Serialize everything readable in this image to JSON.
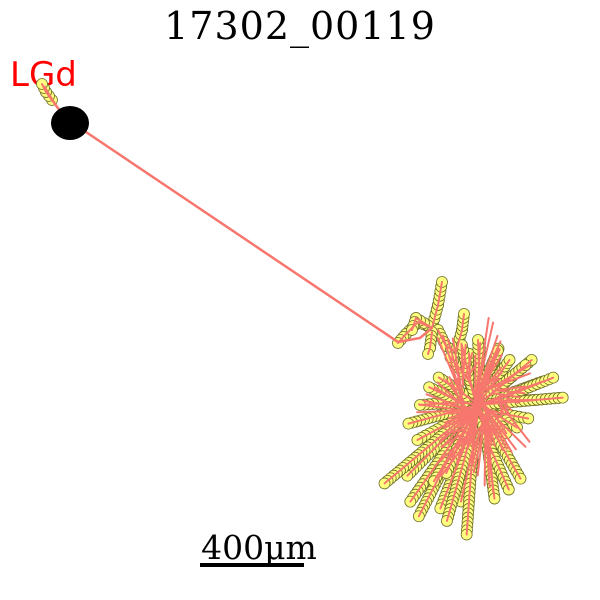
{
  "title": "17302_00119",
  "region_label": "LGd",
  "scale": {
    "text": "400μm",
    "length_um": 400
  },
  "colors": {
    "region_label": "#ff0000",
    "soma": "#000000",
    "axon": "#f7766d",
    "node_fill": "#ffff80",
    "node_stroke": "#6f6f2a",
    "scale_bar": "#000000"
  }
}
